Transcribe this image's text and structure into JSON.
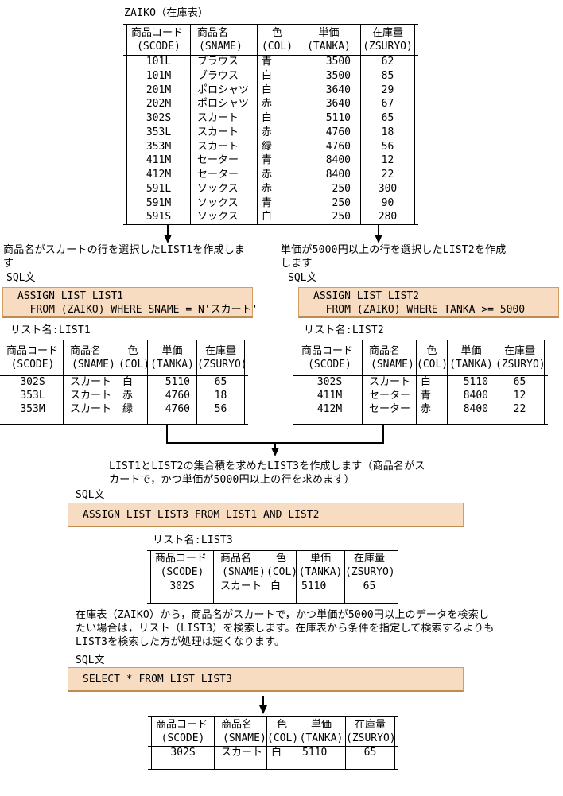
{
  "page_title": "ZAIKO（在庫表）",
  "colors": {
    "sql_box_bg": "#f7dcc1",
    "sql_box_border": "#cf9e65",
    "line_color": "#000000"
  },
  "table_headers": [
    {
      "label": "商品コード",
      "code": "(SCODE)"
    },
    {
      "label": "商品名",
      "code": "(SNAME)"
    },
    {
      "label": "色",
      "code": "(COL)"
    },
    {
      "label": "単価",
      "code": "(TANKA)"
    },
    {
      "label": "在庫量",
      "code": "(ZSURYO)"
    }
  ],
  "zaiko": {
    "rows": [
      [
        "101L",
        "ブラウス",
        "青",
        "3500",
        "62"
      ],
      [
        "101M",
        "ブラウス",
        "白",
        "3500",
        "85"
      ],
      [
        "201M",
        "ポロシャツ",
        "白",
        "3640",
        "29"
      ],
      [
        "202M",
        "ポロシャツ",
        "赤",
        "3640",
        "67"
      ],
      [
        "302S",
        "スカート",
        "白",
        "5110",
        "65"
      ],
      [
        "353L",
        "スカート",
        "赤",
        "4760",
        "18"
      ],
      [
        "353M",
        "スカート",
        "緑",
        "4760",
        "56"
      ],
      [
        "411M",
        "セーター",
        "青",
        "8400",
        "12"
      ],
      [
        "412M",
        "セーター",
        "赤",
        "8400",
        "22"
      ],
      [
        "591L",
        "ソックス",
        "赤",
        "250",
        "300"
      ],
      [
        "591M",
        "ソックス",
        "青",
        "250",
        "90"
      ],
      [
        "591S",
        "ソックス",
        "白",
        "250",
        "280"
      ]
    ]
  },
  "list1": {
    "description": "商品名がスカートの行を選択したLIST1を作成します",
    "sql_label": "SQL文",
    "sql_lines": [
      "ASSIGN LIST LIST1",
      "  FROM (ZAIKO) WHERE SNAME = N'スカート'"
    ],
    "list_title": "リスト名:LIST1",
    "rows": [
      [
        "302S",
        "スカート",
        "白",
        "5110",
        "65"
      ],
      [
        "353L",
        "スカート",
        "赤",
        "4760",
        "18"
      ],
      [
        "353M",
        "スカート",
        "緑",
        "4760",
        "56"
      ]
    ]
  },
  "list2": {
    "description": "単価が5000円以上の行を選択したLIST2を作成します",
    "sql_label": "SQL文",
    "sql_lines": [
      "ASSIGN LIST LIST2",
      "  FROM (ZAIKO) WHERE TANKA >= 5000"
    ],
    "list_title": "リスト名:LIST2",
    "rows": [
      [
        "302S",
        "スカート",
        "白",
        "5110",
        "65"
      ],
      [
        "411M",
        "セーター",
        "青",
        "8400",
        "12"
      ],
      [
        "412M",
        "セーター",
        "赤",
        "8400",
        "22"
      ]
    ]
  },
  "list3": {
    "description": "LIST1とLIST2の集合積を求めたLIST3を作成します（商品名がスカートで，かつ単価が5000円以上の行を求めます）",
    "sql_label": "SQL文",
    "sql_lines": [
      "ASSIGN LIST LIST3 FROM LIST1 AND LIST2"
    ],
    "list_title": "リスト名:LIST3",
    "rows": [
      [
        "302S",
        "スカート",
        "白",
        "5110",
        "65"
      ]
    ]
  },
  "note": "在庫表（ZAIKO）から，商品名がスカートで，かつ単価が5000円以上のデータを検索したい場合は，リスト（LIST3）を検索します。在庫表から条件を指定して検索するよりもLIST3を検索した方が処理は速くなります。",
  "select_query": {
    "sql_label": "SQL文",
    "sql_lines": [
      "SELECT * FROM LIST LIST3"
    ],
    "rows": [
      [
        "302S",
        "スカート",
        "白",
        "5110",
        "65"
      ]
    ]
  }
}
